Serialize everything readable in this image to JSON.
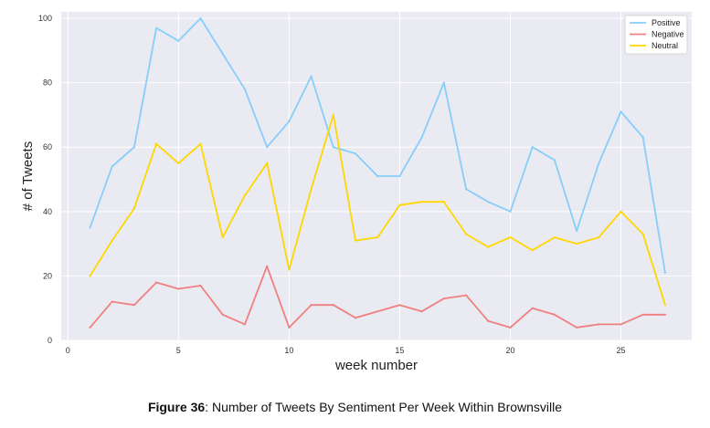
{
  "chart_data": {
    "type": "line",
    "xlabel": "week number",
    "ylabel": "# of Tweets",
    "xlim": [
      -0.3,
      28.2
    ],
    "ylim": [
      0,
      102
    ],
    "xticks": [
      0,
      5,
      10,
      15,
      20,
      25
    ],
    "yticks": [
      0,
      20,
      40,
      60,
      80,
      100
    ],
    "grid": true,
    "legend_position": "top-right",
    "background_color": "#eaeaf2",
    "x": [
      1,
      2,
      3,
      4,
      5,
      6,
      7,
      8,
      9,
      10,
      11,
      12,
      13,
      14,
      15,
      16,
      17,
      18,
      19,
      20,
      21,
      22,
      23,
      24,
      25,
      26,
      27
    ],
    "series": [
      {
        "name": "Positive",
        "color": "#87cefa",
        "values": [
          35,
          54,
          60,
          97,
          93,
          100,
          89,
          78,
          60,
          68,
          82,
          60,
          58,
          51,
          51,
          63,
          80,
          47,
          43,
          40,
          60,
          56,
          34,
          55,
          71,
          63,
          21
        ]
      },
      {
        "name": "Negative",
        "color": "#f08080",
        "values": [
          4,
          12,
          11,
          18,
          16,
          17,
          8,
          5,
          23,
          4,
          11,
          11,
          7,
          9,
          11,
          9,
          13,
          14,
          6,
          4,
          10,
          8,
          4,
          5,
          5,
          8,
          8
        ]
      },
      {
        "name": "Neutral",
        "color": "#ffd700",
        "values": [
          20,
          31,
          41,
          61,
          55,
          61,
          32,
          45,
          55,
          22,
          47,
          70,
          31,
          32,
          42,
          43,
          43,
          33,
          29,
          32,
          28,
          32,
          30,
          32,
          40,
          33,
          11
        ]
      }
    ]
  },
  "caption": {
    "label": "Figure 36",
    "text": ": Number of Tweets By Sentiment Per Week Within Brownsville"
  }
}
